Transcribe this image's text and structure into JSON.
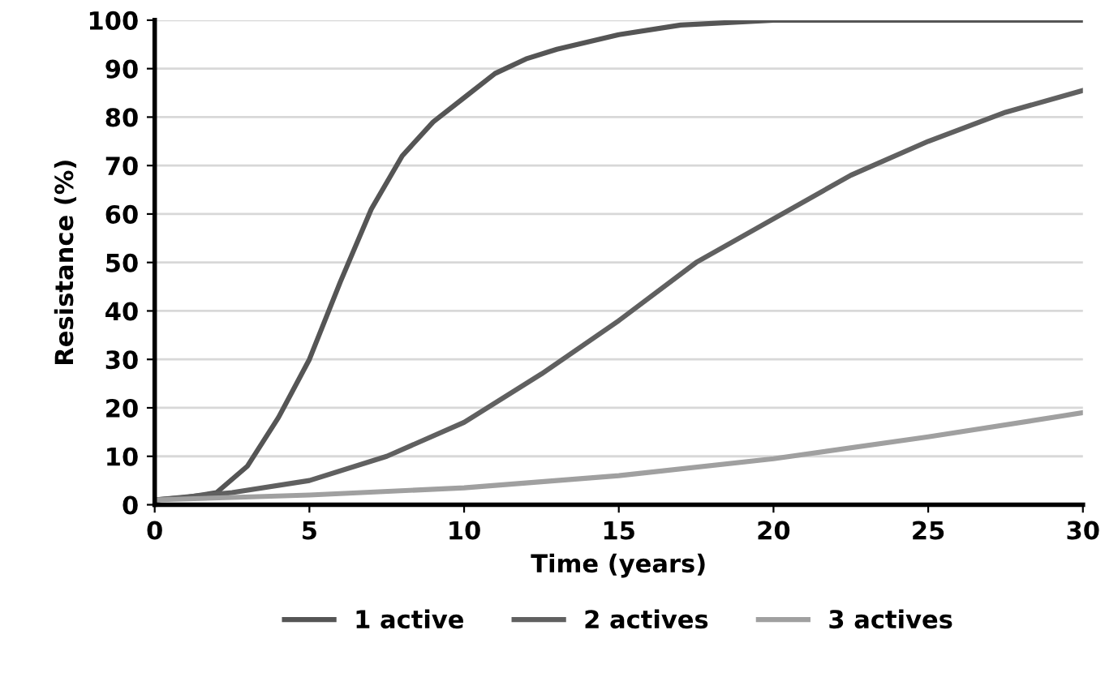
{
  "chart_data": {
    "type": "line",
    "xlabel": "Time (years)",
    "ylabel": "Resistance (%)",
    "xlim": [
      0,
      30
    ],
    "xticks": [
      0,
      5,
      10,
      15,
      20,
      25,
      30
    ],
    "ylim": [
      0,
      100
    ],
    "yticks": [
      0,
      10,
      20,
      30,
      40,
      50,
      60,
      70,
      80,
      90,
      100
    ],
    "grid": "y",
    "legend": "bottom",
    "line_style": "solid",
    "series": [
      {
        "name": "1 active",
        "color": "#555555",
        "x": [
          0,
          1,
          2,
          3,
          4,
          5,
          6,
          7,
          8,
          9,
          10,
          11,
          12,
          13,
          15,
          17,
          20,
          25,
          30
        ],
        "values": [
          1,
          1.5,
          2.5,
          8,
          18,
          30,
          46,
          61,
          72,
          79,
          84,
          89,
          92,
          94,
          97,
          99,
          100,
          100,
          100
        ]
      },
      {
        "name": "2 actives",
        "color": "#606060",
        "x": [
          0,
          2.5,
          5,
          7.5,
          10,
          12.5,
          15,
          17.5,
          20,
          22.5,
          25,
          27.5,
          30
        ],
        "values": [
          1,
          2.5,
          5,
          10,
          17,
          27,
          38,
          50,
          59,
          68,
          75,
          81,
          85.5
        ]
      },
      {
        "name": "3 actives",
        "color": "#a0a0a0",
        "x": [
          0,
          5,
          10,
          15,
          20,
          25,
          30
        ],
        "values": [
          1,
          2,
          3.5,
          6,
          9.5,
          14,
          19
        ]
      }
    ]
  }
}
